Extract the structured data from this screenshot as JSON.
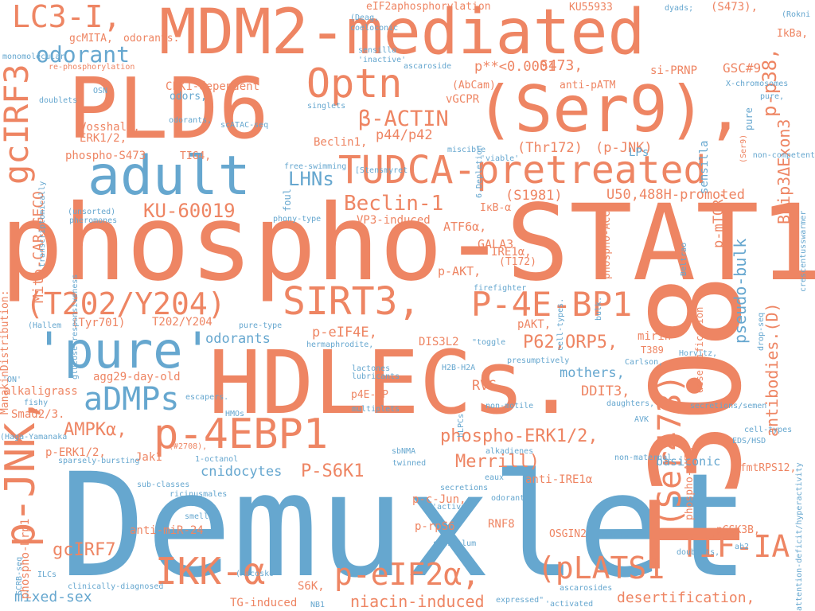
{
  "palette": {
    "orange": "#ee8563",
    "blue": "#66a7cf"
  },
  "words": [
    {
      "text": "Demuxlet",
      "color": "blue"
    },
    {
      "text": "phospho-STAT1",
      "color": "orange"
    },
    {
      "text": "HDLECs.",
      "color": "orange"
    },
    {
      "text": "T308",
      "color": "orange"
    },
    {
      "text": "PLD6",
      "color": "orange"
    },
    {
      "text": "(Ser9),",
      "color": "orange"
    },
    {
      "text": "MDM2-mediated",
      "color": "orange"
    },
    {
      "text": "adult",
      "color": "blue"
    },
    {
      "text": "'pure'",
      "color": "blue"
    },
    {
      "text": "TUDCA-pretreated",
      "color": "orange"
    },
    {
      "text": "SIRT3,",
      "color": "orange"
    },
    {
      "text": "P-4E-BP1",
      "color": "orange"
    },
    {
      "text": "(T202/Y204)",
      "color": "orange"
    },
    {
      "text": "Optn",
      "color": "orange"
    },
    {
      "text": "p-4EBP1",
      "color": "orange"
    },
    {
      "text": "p-JNK,",
      "color": "orange"
    },
    {
      "text": "gcIRF3",
      "color": "orange"
    },
    {
      "text": "(Ser473)",
      "color": "orange"
    },
    {
      "text": "IKK-α",
      "color": "orange"
    },
    {
      "text": "p-eIF2α,",
      "color": "orange"
    },
    {
      "text": "(pLATS1",
      "color": "orange"
    },
    {
      "text": "TIF-IA",
      "color": "orange"
    },
    {
      "text": "aDMPs",
      "color": "blue"
    },
    {
      "text": "LC3-I,",
      "color": "orange"
    },
    {
      "text": "odorant",
      "color": "blue"
    },
    {
      "text": "β-ACTIN",
      "color": "orange"
    },
    {
      "text": "Beclin-1",
      "color": "orange"
    },
    {
      "text": "KU-60019",
      "color": "orange"
    },
    {
      "text": "LHNs",
      "color": "blue"
    },
    {
      "text": "P62,ORP5,",
      "color": "orange"
    },
    {
      "text": "P-S6K1",
      "color": "orange"
    },
    {
      "text": "Merrill)",
      "color": "orange"
    },
    {
      "text": "phospho-ERK1/2,",
      "color": "orange"
    },
    {
      "text": "AMPKα,",
      "color": "orange"
    },
    {
      "text": "gcIRF7",
      "color": "orange"
    },
    {
      "text": "mixed-sex",
      "color": "blue"
    },
    {
      "text": "niacin-induced",
      "color": "orange"
    },
    {
      "text": "desertification,",
      "color": "orange"
    },
    {
      "text": "antibodies.(D)",
      "color": "orange"
    },
    {
      "text": "Bnip3ΔExon3",
      "color": "orange"
    },
    {
      "text": "p-p38,",
      "color": "orange"
    },
    {
      "text": "pseudo-bulk",
      "color": "blue"
    },
    {
      "text": "Mito-CAR-GECO",
      "color": "orange"
    },
    {
      "text": "p-mTOR,",
      "color": "orange"
    },
    {
      "text": "cnidocytes",
      "color": "blue"
    },
    {
      "text": "odorants",
      "color": "blue"
    },
    {
      "text": "mothers,",
      "color": "blue"
    },
    {
      "text": "p-eIF4E,",
      "color": "orange"
    },
    {
      "text": "RVG,",
      "color": "orange"
    },
    {
      "text": "DDIT3,",
      "color": "orange"
    },
    {
      "text": "(S1981)",
      "color": "orange"
    },
    {
      "text": "U50,488H-promoted",
      "color": "orange"
    },
    {
      "text": "S473,",
      "color": "orange"
    },
    {
      "text": "p**<0.0001",
      "color": "orange"
    },
    {
      "text": "GSC#9",
      "color": "orange"
    },
    {
      "text": "(Thr172)",
      "color": "orange"
    },
    {
      "text": "(p-JNK)",
      "color": "orange"
    },
    {
      "text": "p44/p42",
      "color": "orange"
    },
    {
      "text": "ATF6α,",
      "color": "orange"
    },
    {
      "text": "GALA3",
      "color": "orange"
    },
    {
      "text": "p-AKT,",
      "color": "orange"
    },
    {
      "text": "IRE1α,",
      "color": "orange"
    },
    {
      "text": "phospho-S473",
      "color": "orange"
    },
    {
      "text": "CLK1-dependent",
      "color": "orange"
    },
    {
      "text": "vGCPR",
      "color": "orange"
    },
    {
      "text": "si-PRNP",
      "color": "orange"
    },
    {
      "text": "agg29-day-old",
      "color": "orange"
    },
    {
      "text": "alkaligrass",
      "color": "orange"
    },
    {
      "text": "Smad2/3.",
      "color": "orange"
    },
    {
      "text": "p-ERK1/2,",
      "color": "orange"
    },
    {
      "text": "Jak1",
      "color": "orange"
    },
    {
      "text": "(Tyr701)",
      "color": "orange"
    },
    {
      "text": "T202/Y204",
      "color": "orange"
    },
    {
      "text": "DIS3L2",
      "color": "orange"
    },
    {
      "text": "phospho-Drp1",
      "color": "orange"
    },
    {
      "text": "p-c-Jun,",
      "color": "orange"
    },
    {
      "text": "p-rpS6",
      "color": "orange"
    },
    {
      "text": "RNF8",
      "color": "orange"
    },
    {
      "text": "OSGIN2",
      "color": "orange"
    },
    {
      "text": "pGSK3B,",
      "color": "orange"
    },
    {
      "text": "PfmtRPS12,",
      "color": "orange"
    },
    {
      "text": "basiconic",
      "color": "blue"
    },
    {
      "text": "LPs",
      "color": "blue"
    },
    {
      "text": "anti-miR-24",
      "color": "orange"
    },
    {
      "text": "TG-induced",
      "color": "orange"
    },
    {
      "text": "S6K,",
      "color": "orange"
    },
    {
      "text": "anti-IRE1α",
      "color": "orange"
    },
    {
      "text": "sensilla",
      "color": "blue"
    },
    {
      "text": "mirin",
      "color": "orange"
    },
    {
      "text": "pAKT,",
      "color": "orange"
    },
    {
      "text": "Beclin1,",
      "color": "orange"
    },
    {
      "text": "ERK1/2,",
      "color": "orange"
    },
    {
      "text": "Vosshall,",
      "color": "orange"
    },
    {
      "text": "odors,",
      "color": "blue"
    },
    {
      "text": "KU55933",
      "color": "orange"
    },
    {
      "text": "IkBa,",
      "color": "orange"
    },
    {
      "text": "(S473),",
      "color": "orange"
    },
    {
      "text": "eIF2aphosphorylation",
      "color": "orange"
    },
    {
      "text": "(AbCam),",
      "color": "orange"
    },
    {
      "text": "anti-pATM",
      "color": "orange"
    },
    {
      "text": "VP3-induced",
      "color": "orange"
    },
    {
      "text": "IκB-α",
      "color": "orange"
    },
    {
      "text": "TIG4,",
      "color": "orange"
    },
    {
      "text": "gcMITA,",
      "color": "orange"
    },
    {
      "text": "odorants.",
      "color": "orange"
    },
    {
      "text": "phospho-ACC",
      "color": "orange"
    },
    {
      "text": "phospho-AKT,",
      "color": "orange"
    },
    {
      "text": "(T172)",
      "color": "orange"
    },
    {
      "text": "H2B-H2A",
      "color": "blue"
    },
    {
      "text": "p4E-BP",
      "color": "orange"
    },
    {
      "text": "ManakinDistribution:",
      "color": "orange"
    },
    {
      "text": "re-phosphorylation",
      "color": "orange"
    },
    {
      "text": "monomolecular",
      "color": "blue"
    },
    {
      "text": "(Deag,",
      "color": "blue"
    },
    {
      "text": "coeloconic",
      "color": "blue"
    },
    {
      "text": "sensilla",
      "color": "blue"
    },
    {
      "text": "'inactive'",
      "color": "blue"
    },
    {
      "text": "ascaroside",
      "color": "blue"
    },
    {
      "text": "dyads;",
      "color": "blue"
    },
    {
      "text": "(Rokni",
      "color": "blue"
    },
    {
      "text": "doublets",
      "color": "blue"
    },
    {
      "text": "OSN",
      "color": "blue"
    },
    {
      "text": "singlets",
      "color": "blue"
    },
    {
      "text": "scATAC-seq",
      "color": "blue"
    },
    {
      "text": "odorants,",
      "color": "blue"
    },
    {
      "text": "transcriptomically",
      "color": "blue"
    },
    {
      "text": "free-swimming",
      "color": "blue"
    },
    {
      "text": "foul",
      "color": "blue"
    },
    {
      "text": "6.Depletion",
      "color": "blue"
    },
    {
      "text": "miscible",
      "color": "blue"
    },
    {
      "text": "'viable'",
      "color": "blue"
    },
    {
      "text": "X-chromosomes",
      "color": "blue"
    },
    {
      "text": "pure,",
      "color": "blue"
    },
    {
      "text": "pure",
      "color": "blue"
    },
    {
      "text": "(Ser9)",
      "color": "orange"
    },
    {
      "text": "non-competent",
      "color": "blue"
    },
    {
      "text": "crescentusswarmer",
      "color": "blue"
    },
    {
      "text": "[Stensmyret",
      "color": "blue"
    },
    {
      "text": "(unsorted)",
      "color": "blue"
    },
    {
      "text": "pheromones",
      "color": "blue"
    },
    {
      "text": "glucose-responsiveness",
      "color": "blue"
    },
    {
      "text": "phony-type",
      "color": "blue"
    },
    {
      "text": "Beltrao",
      "color": "blue"
    },
    {
      "text": "desertification",
      "color": "orange"
    },
    {
      "text": "cell-types.",
      "color": "blue"
    },
    {
      "text": "bulk.",
      "color": "blue"
    },
    {
      "text": "drop-seq",
      "color": "blue"
    },
    {
      "text": "firefighter",
      "color": "blue"
    },
    {
      "text": "(Hallem",
      "color": "blue"
    },
    {
      "text": "pure-type",
      "color": "blue"
    },
    {
      "text": "hermaphrodite,",
      "color": "blue"
    },
    {
      "text": "\"toggle",
      "color": "blue"
    },
    {
      "text": "presumptively",
      "color": "blue"
    },
    {
      "text": "Carlson,",
      "color": "blue"
    },
    {
      "text": "Horvitz,",
      "color": "blue"
    },
    {
      "text": "lactones",
      "color": "blue"
    },
    {
      "text": "lubricants",
      "color": "blue"
    },
    {
      "text": "multiplets",
      "color": "blue"
    },
    {
      "text": "non-motile",
      "color": "blue"
    },
    {
      "text": "daughters,",
      "color": "blue"
    },
    {
      "text": "secretions/semen",
      "color": "blue"
    },
    {
      "text": "cell-types",
      "color": "blue"
    },
    {
      "text": "EDS/HSD",
      "color": "blue"
    },
    {
      "text": "attention-deficit/hyperactivity",
      "color": "blue"
    },
    {
      "text": "'ON'",
      "color": "blue"
    },
    {
      "text": "fishy",
      "color": "blue"
    },
    {
      "text": "escapers.",
      "color": "blue"
    },
    {
      "text": "HMOs",
      "color": "blue"
    },
    {
      "text": "(Haga-Yamanaka",
      "color": "blue"
    },
    {
      "text": "(#2708),",
      "color": "orange"
    },
    {
      "text": "sparsely-bursting",
      "color": "blue"
    },
    {
      "text": "1-octanol",
      "color": "blue"
    },
    {
      "text": "sub-classes",
      "color": "blue"
    },
    {
      "text": "ricinusmales",
      "color": "blue"
    },
    {
      "text": "sbNMA",
      "color": "blue"
    },
    {
      "text": "twinned",
      "color": "blue"
    },
    {
      "text": "secretions",
      "color": "blue"
    },
    {
      "text": "'active'",
      "color": "blue"
    },
    {
      "text": "alkadienes",
      "color": "blue"
    },
    {
      "text": "eaux",
      "color": "blue"
    },
    {
      "text": "odorant",
      "color": "blue"
    },
    {
      "text": "sensillum",
      "color": "blue"
    },
    {
      "text": "non-maternal",
      "color": "blue"
    },
    {
      "text": "hLPCs",
      "color": "blue"
    },
    {
      "text": "AVK",
      "color": "blue"
    },
    {
      "text": "smells",
      "color": "blue"
    },
    {
      "text": "dilute",
      "color": "blue"
    },
    {
      "text": "doublets,",
      "color": "blue"
    },
    {
      "text": "ab2",
      "color": "blue"
    },
    {
      "text": "SCRB-seq",
      "color": "blue"
    },
    {
      "text": "ILCs",
      "color": "blue"
    },
    {
      "text": "clinically-diagnosed",
      "color": "blue"
    },
    {
      "text": "(Macosko",
      "color": "blue"
    },
    {
      "text": "NB1",
      "color": "blue"
    },
    {
      "text": "expressed\"",
      "color": "blue"
    },
    {
      "text": "ascarosides",
      "color": "blue"
    },
    {
      "text": "'activated",
      "color": "blue"
    },
    {
      "text": "T389",
      "color": "orange"
    }
  ]
}
